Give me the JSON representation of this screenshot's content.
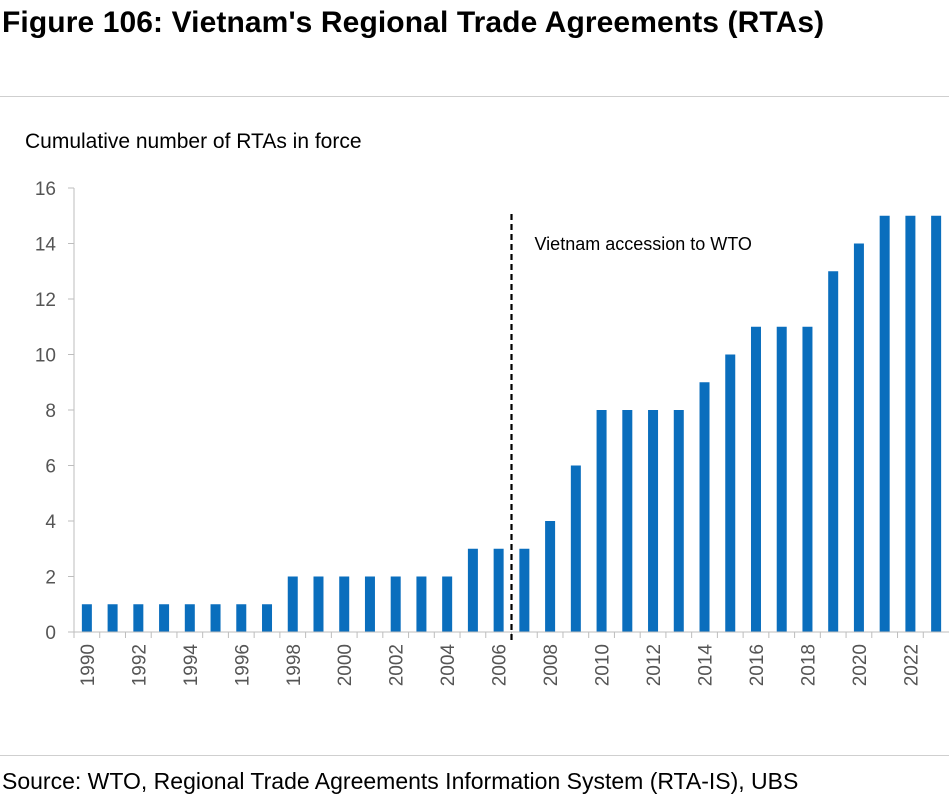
{
  "figure_title": "Figure 106: Vietnam's Regional Trade Agreements (RTAs)",
  "source": "Source: WTO, Regional Trade Agreements Information System (RTA-IS), UBS",
  "chart_data": {
    "type": "bar",
    "ylabel": "Cumulative number of RTAs in force",
    "ylim": [
      0,
      16
    ],
    "yticks": [
      0,
      2,
      4,
      6,
      8,
      10,
      12,
      14,
      16
    ],
    "categories": [
      1990,
      1991,
      1992,
      1993,
      1994,
      1995,
      1996,
      1997,
      1998,
      1999,
      2000,
      2001,
      2002,
      2003,
      2004,
      2005,
      2006,
      2007,
      2008,
      2009,
      2010,
      2011,
      2012,
      2013,
      2014,
      2015,
      2016,
      2017,
      2018,
      2019,
      2020,
      2021,
      2022,
      2023
    ],
    "values": [
      1,
      1,
      1,
      1,
      1,
      1,
      1,
      1,
      2,
      2,
      2,
      2,
      2,
      2,
      2,
      3,
      3,
      3,
      4,
      6,
      8,
      8,
      8,
      8,
      9,
      10,
      11,
      11,
      11,
      13,
      14,
      15,
      15,
      15
    ],
    "xtick_labels": [
      "1990",
      "1992",
      "1994",
      "1996",
      "1998",
      "2000",
      "2002",
      "2004",
      "2006",
      "2008",
      "2010",
      "2012",
      "2014",
      "2016",
      "2018",
      "2020",
      "2022"
    ],
    "bar_color": "#0a6ebd",
    "annotation": {
      "text": "Vietnam accession to WTO",
      "between": [
        2006,
        2007
      ],
      "line_style": "dashed"
    }
  }
}
